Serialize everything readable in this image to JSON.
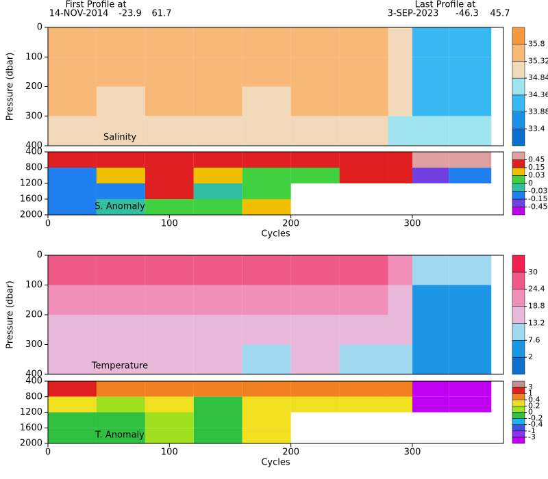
{
  "header": {
    "first": {
      "title": "First Profile at",
      "date": "14-NOV-2014",
      "lat": -23.9,
      "lon": 61.7
    },
    "last": {
      "title": "Last Profile at",
      "date": "3-SEP-2023",
      "lat": -46.3,
      "lon": 45.7
    }
  },
  "chart_data": [
    {
      "type": "heatmap",
      "label": "Salinity",
      "ylabel": "Pressure (dbar)",
      "xlim": [
        0,
        375
      ],
      "ylim": [
        400,
        0
      ],
      "yticks": [
        0,
        100,
        200,
        300,
        400
      ],
      "xbins": [
        0,
        40,
        80,
        120,
        160,
        200,
        240,
        280,
        300,
        330,
        365
      ],
      "ybins": [
        0,
        100,
        200,
        300,
        400
      ],
      "values": [
        [
          35.6,
          35.5,
          35.6,
          35.6,
          35.5,
          35.6,
          35.6,
          35.1,
          34.0,
          33.9
        ],
        [
          35.5,
          35.4,
          35.5,
          35.5,
          35.4,
          35.5,
          35.5,
          35.0,
          34.2,
          34.1
        ],
        [
          35.4,
          35.3,
          35.4,
          35.4,
          35.3,
          35.4,
          35.4,
          34.9,
          34.3,
          34.3
        ],
        [
          35.3,
          35.2,
          35.3,
          35.3,
          35.2,
          35.3,
          35.3,
          34.8,
          34.4,
          34.4
        ]
      ],
      "levels": [
        33.4,
        33.88,
        34.36,
        34.84,
        35.32,
        35.8
      ],
      "colors": [
        "#0a70d0",
        "#1a90e8",
        "#38b8f0",
        "#a0e4f0",
        "#f0d8b8",
        "#f8b878",
        "#f59a40"
      ]
    },
    {
      "type": "heatmap",
      "label": "S. Anomaly",
      "xlabel": "Cycles",
      "xlim": [
        0,
        375
      ],
      "ylim": [
        2000,
        400
      ],
      "yticks": [
        400,
        800,
        1200,
        1600,
        2000
      ],
      "xticks": [
        0,
        100,
        200,
        300
      ],
      "xbins": [
        0,
        40,
        80,
        120,
        160,
        200,
        240,
        280,
        300,
        330,
        365
      ],
      "ybins": [
        400,
        800,
        1200,
        1600,
        2000
      ],
      "values": [
        [
          0.3,
          0.2,
          0.2,
          0.2,
          0.3,
          0.2,
          0.3,
          0.2,
          0.5,
          0.5
        ],
        [
          -0.1,
          0.05,
          0.3,
          0.1,
          0.0,
          0.02,
          0.2,
          0.2,
          -0.2,
          -0.1
        ],
        [
          -0.1,
          -0.05,
          0.2,
          -0.02,
          0.01,
          null,
          null,
          null,
          null,
          null
        ],
        [
          -0.04,
          -0.02,
          0.0,
          0.01,
          0.1,
          null,
          null,
          null,
          null,
          null
        ]
      ],
      "levels": [
        -0.45,
        -0.15,
        -0.03,
        0,
        0.03,
        0.15,
        0.45
      ],
      "colors": [
        "#c000f0",
        "#7040e0",
        "#2080f0",
        "#30c0a0",
        "#40d040",
        "#f0c000",
        "#e02020",
        "#e0a0a0"
      ]
    },
    {
      "type": "heatmap",
      "label": "Temperature",
      "ylabel": "Pressure (dbar)",
      "xlim": [
        0,
        375
      ],
      "ylim": [
        400,
        0
      ],
      "yticks": [
        0,
        100,
        200,
        300,
        400
      ],
      "xbins": [
        0,
        40,
        80,
        120,
        160,
        200,
        240,
        280,
        300,
        330,
        365
      ],
      "ybins": [
        0,
        100,
        200,
        300,
        400
      ],
      "values": [
        [
          26,
          26,
          27,
          26,
          25,
          26,
          26,
          22,
          9,
          8
        ],
        [
          22,
          21,
          22,
          21,
          20,
          21,
          21,
          17,
          7,
          6
        ],
        [
          18,
          17,
          18,
          17,
          16,
          17,
          17,
          14,
          6,
          5
        ],
        [
          14,
          14,
          15,
          14,
          13,
          14,
          13,
          11,
          5,
          4
        ]
      ],
      "levels": [
        2,
        7.6,
        13.2,
        18.8,
        24.4,
        30
      ],
      "colors": [
        "#1070d0",
        "#1e96e6",
        "#a0d8f0",
        "#e8b8d8",
        "#f090b8",
        "#f05a88",
        "#f02050"
      ]
    },
    {
      "type": "heatmap",
      "label": "T. Anomaly",
      "xlabel": "Cycles",
      "xlim": [
        0,
        375
      ],
      "ylim": [
        2000,
        400
      ],
      "yticks": [
        400,
        800,
        1200,
        1600,
        2000
      ],
      "xticks": [
        0,
        100,
        200,
        300
      ],
      "xbins": [
        0,
        40,
        80,
        120,
        160,
        200,
        240,
        280,
        300,
        330,
        365
      ],
      "ybins": [
        400,
        800,
        1200,
        1600,
        2000
      ],
      "values": [
        [
          1.2,
          0.8,
          0.5,
          0.6,
          0.7,
          0.8,
          0.9,
          0.5,
          -3.5,
          -3.5
        ],
        [
          0.3,
          0.1,
          0.2,
          -0.1,
          0.2,
          0.3,
          0.3,
          0.3,
          -3.2,
          -3.2
        ],
        [
          -0.1,
          -0.2,
          0.1,
          -0.1,
          0.3,
          null,
          null,
          null,
          null,
          null
        ],
        [
          -0.1,
          -0.1,
          0.0,
          -0.1,
          0.2,
          null,
          null,
          null,
          null,
          null
        ]
      ],
      "levels": [
        -3,
        -1,
        -0.4,
        -0.2,
        0,
        0.2,
        0.4,
        1,
        3
      ],
      "colors": [
        "#c000f0",
        "#9030f0",
        "#4050e0",
        "#20b0f0",
        "#30c040",
        "#a0e020",
        "#f0e020",
        "#f08020",
        "#e02020",
        "#c09090"
      ]
    }
  ]
}
